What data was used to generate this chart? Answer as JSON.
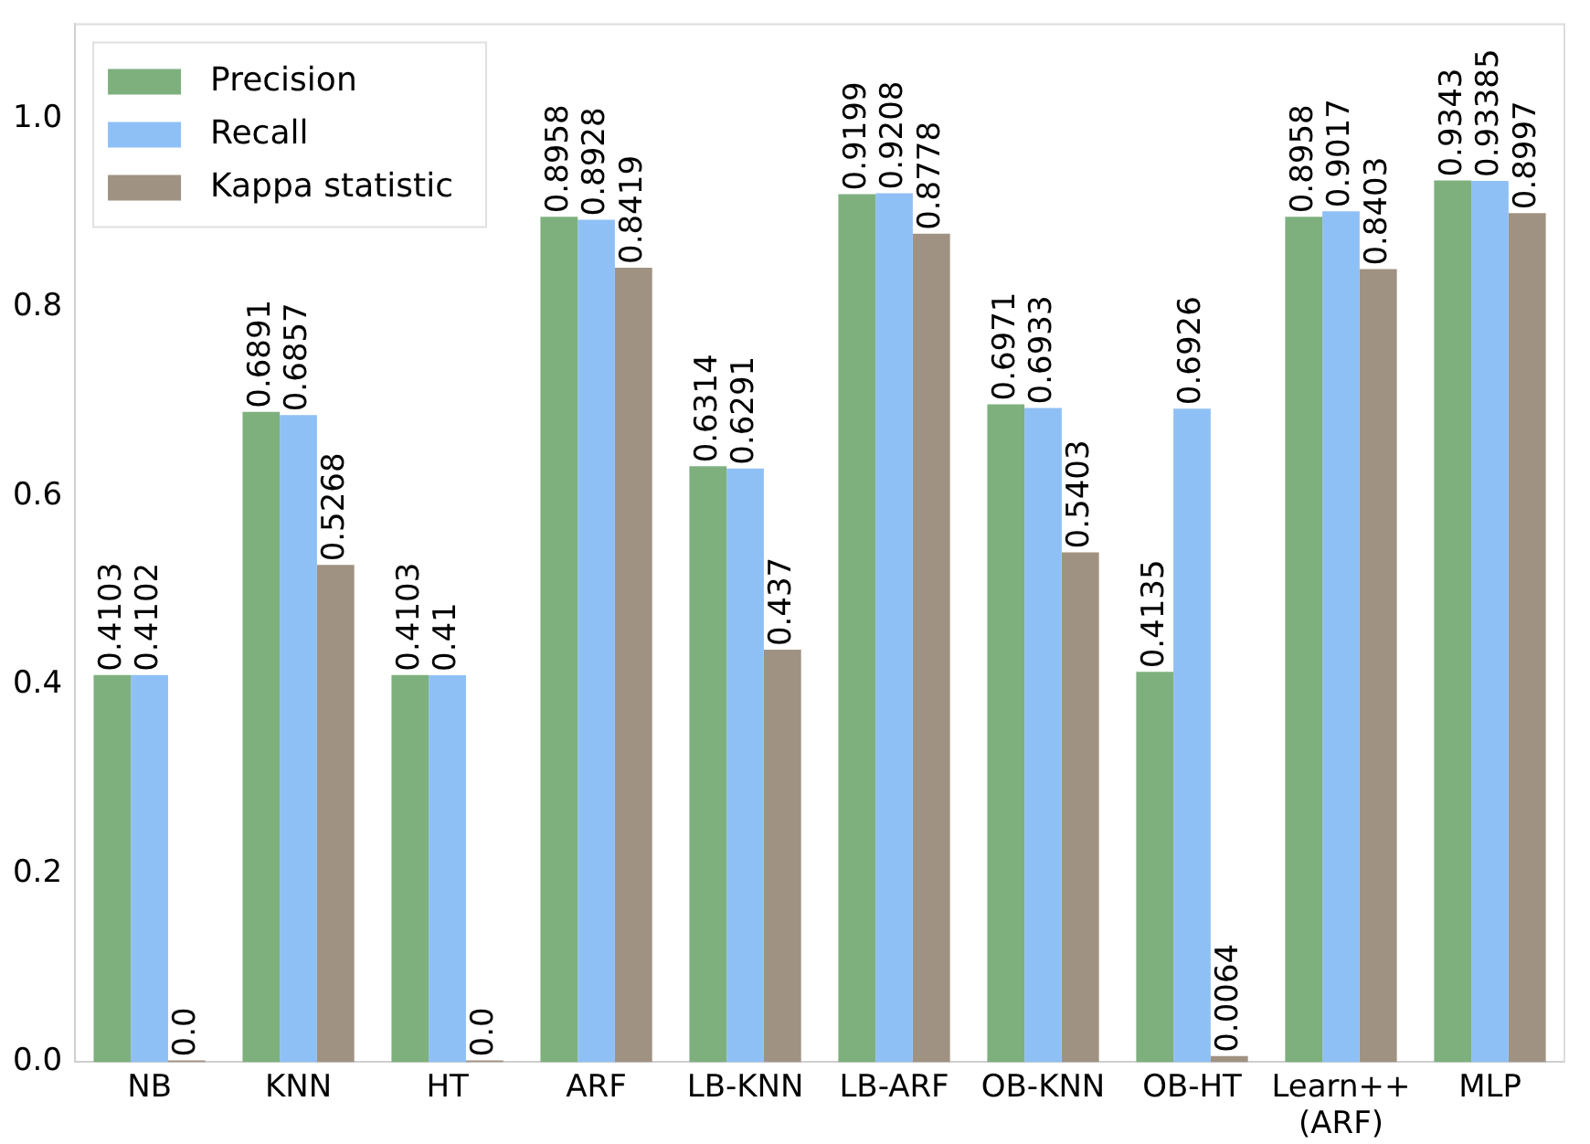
{
  "chart_data": {
    "type": "bar",
    "categories": [
      "NB",
      "KNN",
      "HT",
      "ARF",
      "LB-KNN",
      "LB-ARF",
      "OB-KNN",
      "OB-HT",
      "Learn++\n(ARF)",
      "MLP"
    ],
    "series": [
      {
        "name": "Precision",
        "color": "#7eb07e",
        "values": [
          0.4103,
          0.6891,
          0.4103,
          0.8958,
          0.6314,
          0.9199,
          0.6971,
          0.4135,
          0.8958,
          0.9343
        ],
        "value_labels": [
          "0.4103",
          "0.6891",
          "0.4103",
          "0.8958",
          "0.6314",
          "0.9199",
          "0.6971",
          "0.4135",
          "0.8958",
          "0.9343"
        ]
      },
      {
        "name": "Recall",
        "color": "#8fc0f5",
        "values": [
          0.4102,
          0.6857,
          0.41,
          0.8928,
          0.6291,
          0.9208,
          0.6933,
          0.6926,
          0.9017,
          0.93385
        ],
        "value_labels": [
          "0.4102",
          "0.6857",
          "0.41",
          "0.8928",
          "0.6291",
          "0.9208",
          "0.6933",
          "0.6926",
          "0.9017",
          "0.93385"
        ]
      },
      {
        "name": "Kappa statistic",
        "color": "#a09282",
        "values": [
          0,
          0.5268,
          0,
          0.8419,
          0.437,
          0.8778,
          0.5403,
          0.0064,
          0.8403,
          0.8997
        ],
        "value_labels": [
          "0.0",
          "0.5268",
          "0.0",
          "0.8419",
          "0.437",
          "0.8778",
          "0.5403",
          "0.0064",
          "0.8403",
          "0.8997"
        ]
      }
    ],
    "ylim": [
      0,
      1.1
    ],
    "yticks": [
      {
        "value": 0,
        "label": "0.0"
      },
      {
        "value": 0.2,
        "label": "0.2"
      },
      {
        "value": 0.4,
        "label": "0.4"
      },
      {
        "value": 0.6,
        "label": "0.6"
      },
      {
        "value": 0.8,
        "label": "0.8"
      },
      {
        "value": 1,
        "label": "1.0"
      }
    ],
    "grid": false,
    "legend": "top left"
  }
}
